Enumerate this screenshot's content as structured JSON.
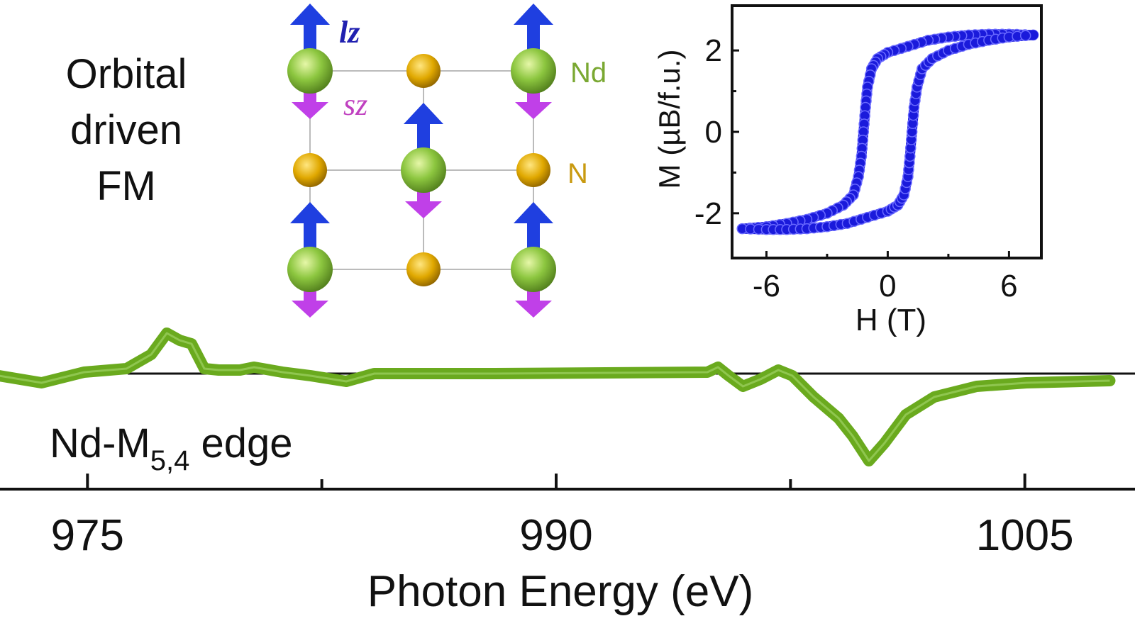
{
  "colors": {
    "xmcd_line": "#6aaa1e",
    "hysteresis_markers": "#1a1adb",
    "nd_atom": "#8cc63f",
    "n_atom": "#e0a800",
    "lz_arrow": "#1f3fe0",
    "sz_arrow": "#c040e8",
    "lz_label": "#2020b0",
    "sz_label": "#c040c0",
    "nd_label": "#7aa832",
    "n_label": "#c99a10"
  },
  "labels": {
    "title_lines": [
      "Orbital",
      "driven",
      "FM"
    ],
    "edge_label_main": "Nd-M",
    "edge_label_sub": "5,4",
    "edge_label_tail": " edge",
    "lz": "lz",
    "sz": "sz",
    "nd": "Nd",
    "n": "N"
  },
  "chart_data": [
    {
      "type": "line",
      "xlabel": "Photon Energy (eV)",
      "ylabel": "",
      "xlim": [
        972.2,
        1007.8
      ],
      "xticks": [
        975,
        990,
        1005
      ],
      "xtick_labels": [
        "975",
        "990",
        "1005"
      ],
      "minor_xticks": [
        982.5,
        997.5
      ],
      "y_axis_shown": false,
      "zero_line": true,
      "y_units": "arbitrary",
      "series": [
        {
          "x": [
            972.17,
            973.53,
            974.89,
            976.25,
            977.04,
            977.54,
            977.95,
            978.33,
            978.74,
            979.2,
            979.88,
            980.33,
            981.24,
            982.14,
            983.28,
            984.18,
            988.04,
            994.84,
            995.18,
            995.52,
            995.98,
            996.54,
            997.11,
            997.56,
            998.24,
            999.04,
            999.49,
            1000.01,
            1000.51,
            1001.19,
            1002.1,
            1003.46,
            1005.05,
            1007.72
          ],
          "y": [
            -0.03,
            -0.13,
            0.02,
            0.07,
            0.27,
            0.57,
            0.47,
            0.42,
            0.07,
            0.05,
            0.05,
            0.09,
            0.02,
            -0.03,
            -0.11,
            0,
            0,
            0.02,
            0.09,
            -0.03,
            -0.18,
            -0.08,
            0.05,
            -0.03,
            -0.33,
            -0.63,
            -0.88,
            -1.23,
            -0.98,
            -0.58,
            -0.33,
            -0.18,
            -0.13,
            -0.1
          ]
        }
      ]
    },
    {
      "type": "scatter",
      "xlabel": "H (T)",
      "ylabel": "M (µB/f.u.)",
      "xlim": [
        -7.7,
        7.6
      ],
      "ylim": [
        -3.1,
        3.1
      ],
      "xticks": [
        -6,
        0,
        6
      ],
      "xtick_labels": [
        "-6",
        "0",
        "6"
      ],
      "yticks": [
        -2,
        0,
        2
      ],
      "ytick_labels": [
        "-2",
        "0",
        "2"
      ],
      "minor_xticks": [
        -3,
        3
      ],
      "minor_yticks": [
        -1,
        1
      ],
      "series": [
        {
          "x": [
            7.2,
            6,
            5,
            4,
            3,
            2,
            1,
            0,
            -0.5,
            -0.8,
            -1.0,
            -1.1,
            -1.2,
            -1.3,
            -1.45,
            -1.7,
            -2.2,
            -3,
            -4,
            -5,
            -6,
            -7.2
          ],
          "y": [
            2.38,
            2.4,
            2.4,
            2.38,
            2.33,
            2.25,
            2.1,
            1.95,
            1.8,
            1.55,
            1.1,
            0.6,
            0.0,
            -0.6,
            -1.1,
            -1.55,
            -1.8,
            -2.0,
            -2.15,
            -2.25,
            -2.33,
            -2.38
          ]
        },
        {
          "x": [
            -7.2,
            -6,
            -5,
            -4,
            -3,
            -2,
            -1,
            0,
            0.5,
            0.8,
            1.0,
            1.1,
            1.2,
            1.3,
            1.45,
            1.7,
            2.2,
            3,
            4,
            5,
            6,
            7.2
          ],
          "y": [
            -2.38,
            -2.4,
            -2.4,
            -2.38,
            -2.33,
            -2.25,
            -2.1,
            -1.95,
            -1.8,
            -1.55,
            -1.1,
            -0.6,
            0.0,
            0.6,
            1.1,
            1.55,
            1.8,
            2.0,
            2.15,
            2.25,
            2.33,
            2.38
          ]
        }
      ]
    }
  ]
}
